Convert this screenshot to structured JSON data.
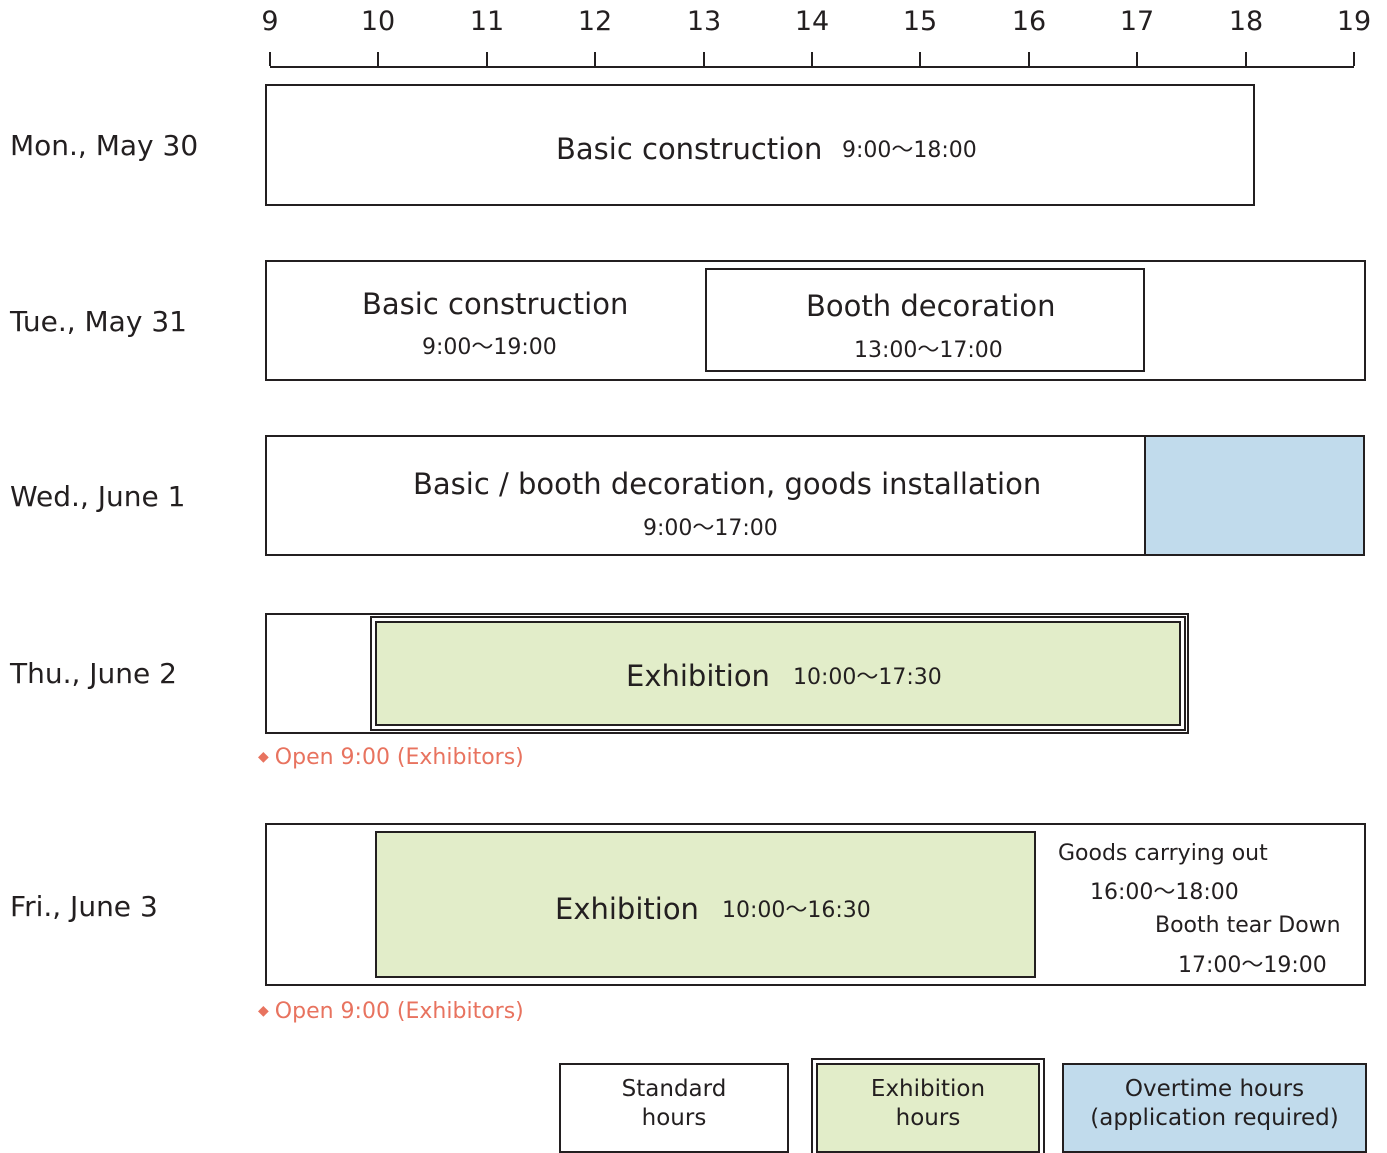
{
  "axis": {
    "ticks": [
      "9",
      "10",
      "11",
      "12",
      "13",
      "14",
      "15",
      "16",
      "17",
      "18",
      "19"
    ]
  },
  "days": [
    {
      "label": "Mon., May 30"
    },
    {
      "label": "Tue., May 31"
    },
    {
      "label": "Wed., June 1"
    },
    {
      "label": "Thu., June 2"
    },
    {
      "label": "Fri., June 3"
    }
  ],
  "mon": {
    "title": "Basic construction",
    "time": "9:00～18:00"
  },
  "tue": {
    "basic_title": "Basic construction",
    "basic_time": "9:00～19:00",
    "booth_title": "Booth decoration",
    "booth_time": "13:00～17:00"
  },
  "wed": {
    "title": "Basic / booth decoration, goods installation",
    "time": "9:00～17:00"
  },
  "thu": {
    "title": "Exhibition",
    "time": "10:00～17:30",
    "note": "Open 9:00 (Exhibitors)"
  },
  "fri": {
    "title": "Exhibition",
    "time": "10:00～16:30",
    "goods_title": "Goods carrying out",
    "goods_time": "16:00～18:00",
    "teardown_title": "Booth tear Down",
    "teardown_time": "17:00～19:00",
    "note": "Open 9:00 (Exhibitors)"
  },
  "note_icon": "◆",
  "legend": {
    "standard": [
      "Standard",
      "hours"
    ],
    "exhibition": [
      "Exhibition",
      "hours"
    ],
    "overtime": [
      "Overtime hours",
      "(application required)"
    ]
  },
  "colors": {
    "exhibition": "#e2edc9",
    "overtime": "#c1dbec",
    "note": "#e8735f",
    "line": "#231f20"
  }
}
